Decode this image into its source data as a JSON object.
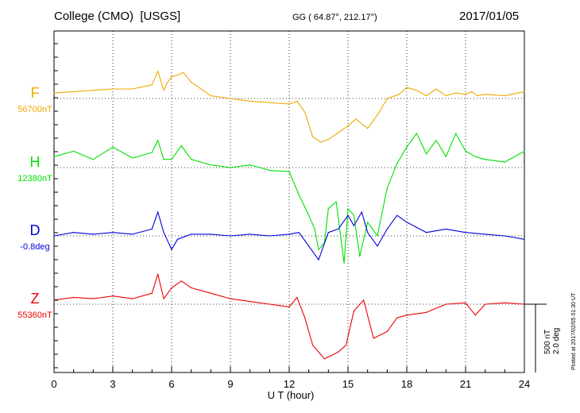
{
  "header": {
    "station": "College (CMO)  [USGS]",
    "coords": "GG ( 64.87°, 212.17°)",
    "date": "2017/01/05"
  },
  "colors": {
    "F": "#f0a800",
    "H": "#00e000",
    "D": "#0000dd",
    "Z": "#ee0000"
  },
  "scale_bar": {
    "label1": "500 nT",
    "label2": "2.0 deg"
  },
  "plotted_note": "Plotted at 2017/02/05 01:30 UT",
  "chart_data": {
    "type": "line",
    "xlabel": "U T (hour)",
    "xlim": [
      0,
      24
    ],
    "xticks": [
      "0",
      "3",
      "6",
      "9",
      "12",
      "15",
      "18",
      "21",
      "24"
    ],
    "grid": true,
    "series": [
      {
        "name": "F",
        "baseline_label": "56700nT",
        "unit": "nT",
        "baseline": 56700,
        "x": [
          0,
          1,
          2,
          3,
          4,
          5,
          5.3,
          5.6,
          5.8,
          6,
          6.3,
          6.6,
          7,
          8,
          9,
          10,
          11,
          12,
          12.4,
          12.8,
          13.2,
          13.6,
          14,
          14.5,
          15,
          15.4,
          16,
          16.6,
          17,
          17.6,
          18,
          18.5,
          19,
          19.5,
          20,
          20.5,
          21,
          21.3,
          21.6,
          22,
          23,
          24
        ],
        "y": [
          40,
          50,
          60,
          70,
          70,
          100,
          200,
          60,
          120,
          160,
          170,
          190,
          120,
          20,
          0,
          -20,
          -30,
          -40,
          -20,
          -100,
          -280,
          -320,
          -300,
          -250,
          -200,
          -150,
          -220,
          -100,
          0,
          30,
          80,
          60,
          20,
          70,
          20,
          40,
          30,
          50,
          20,
          30,
          20,
          50
        ]
      },
      {
        "name": "H",
        "baseline_label": "12380nT",
        "unit": "nT",
        "baseline": 12380,
        "x": [
          0,
          1,
          2,
          3,
          4,
          5,
          5.3,
          5.6,
          6,
          6.5,
          7,
          8,
          9,
          10,
          11,
          12,
          12.5,
          13,
          13.3,
          13.5,
          13.8,
          14,
          14.4,
          14.8,
          15,
          15.3,
          15.6,
          16,
          16.5,
          17,
          17.5,
          18,
          18.5,
          19,
          19.5,
          20,
          20.5,
          21,
          21.5,
          22,
          23,
          24
        ],
        "y": [
          80,
          120,
          60,
          150,
          70,
          110,
          200,
          60,
          60,
          160,
          60,
          20,
          0,
          20,
          -20,
          -30,
          -200,
          -350,
          -450,
          -600,
          -550,
          -300,
          -250,
          -700,
          -300,
          -350,
          -650,
          -400,
          -500,
          -150,
          30,
          150,
          250,
          100,
          200,
          80,
          250,
          120,
          80,
          60,
          40,
          120
        ]
      },
      {
        "name": "D",
        "baseline_label": "-0.8deg",
        "unit": "deg",
        "baseline": -0.8,
        "x": [
          0,
          1,
          2,
          3,
          4,
          5,
          5.3,
          5.6,
          6,
          6.3,
          7,
          8,
          9,
          10,
          11,
          12,
          12.5,
          13,
          13.5,
          14,
          14.5,
          15,
          15.3,
          15.7,
          16,
          16.5,
          17,
          17.5,
          18,
          19,
          20,
          21,
          22,
          23,
          24
        ],
        "y": [
          0,
          0.1,
          0.05,
          0.1,
          0.05,
          0.2,
          0.7,
          0.1,
          -0.4,
          -0.1,
          0.05,
          0.05,
          0,
          0.05,
          0,
          0.05,
          0.1,
          -0.3,
          -0.7,
          0.1,
          0.2,
          0.6,
          0.3,
          0.7,
          0.1,
          -0.3,
          0.2,
          0.6,
          0.4,
          0.1,
          0.2,
          0.1,
          0.05,
          0,
          -0.1
        ]
      },
      {
        "name": "Z",
        "baseline_label": "55360nT",
        "unit": "nT",
        "baseline": 55360,
        "x": [
          0,
          1,
          2,
          3,
          4,
          5,
          5.3,
          5.6,
          6,
          6.5,
          7,
          8,
          9,
          10,
          11,
          12,
          12.4,
          12.8,
          13.2,
          13.8,
          14.5,
          14.9,
          15.3,
          15.8,
          16.3,
          17,
          17.5,
          18,
          19,
          20,
          21,
          21.5,
          22,
          23,
          24
        ],
        "y": [
          30,
          50,
          40,
          60,
          40,
          80,
          220,
          40,
          120,
          170,
          120,
          80,
          40,
          20,
          0,
          -20,
          50,
          -100,
          -300,
          -400,
          -350,
          -300,
          -50,
          30,
          -250,
          -200,
          -100,
          -80,
          -60,
          0,
          10,
          -80,
          0,
          10,
          0
        ]
      }
    ]
  }
}
